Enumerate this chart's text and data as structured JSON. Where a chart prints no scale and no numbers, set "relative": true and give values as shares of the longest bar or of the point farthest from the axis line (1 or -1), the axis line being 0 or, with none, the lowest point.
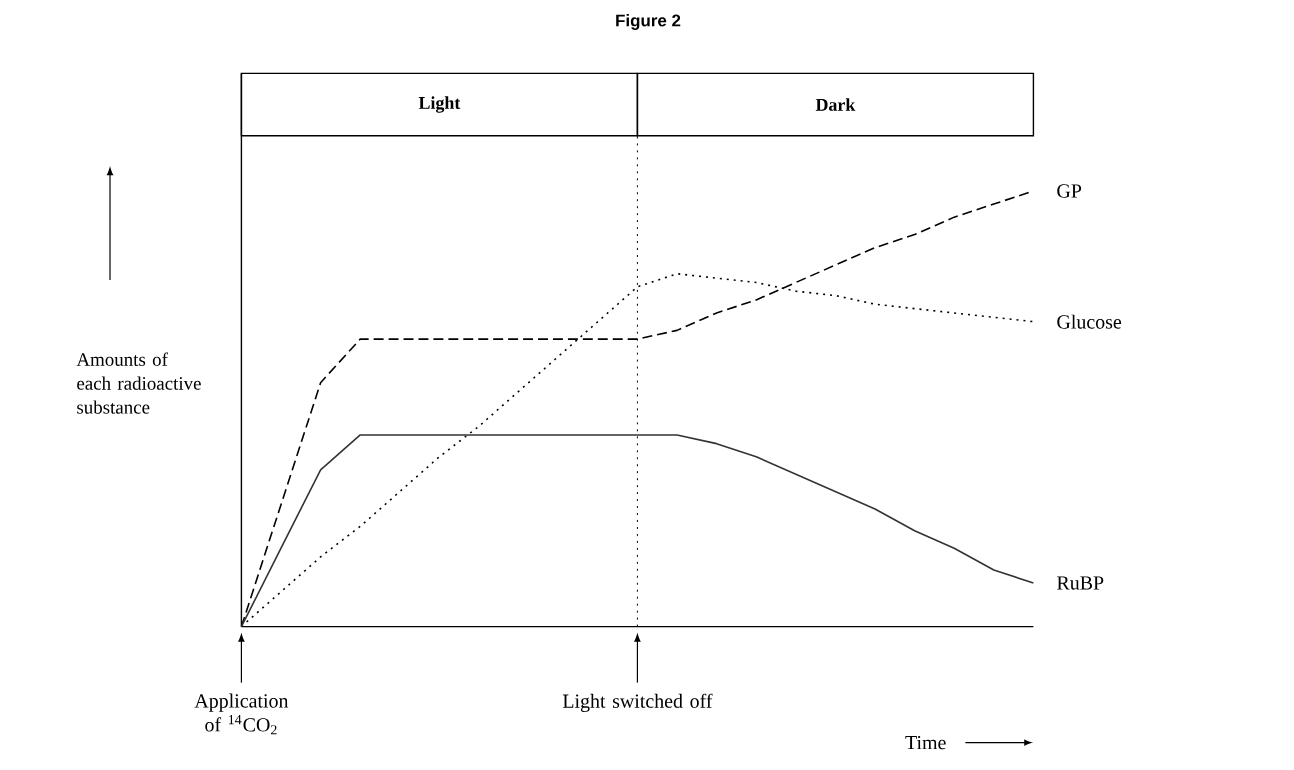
{
  "chart_data": {
    "type": "line",
    "title": "Figure 2",
    "relative": true,
    "ylabel": "Amounts of each radioactive substance",
    "categories": [
      null,
      null,
      null,
      null,
      null,
      null,
      null,
      null,
      null,
      null,
      null,
      null,
      null,
      null,
      null,
      null,
      null,
      null,
      null,
      null,
      null
    ],
    "series": [
      {
        "name": "GP",
        "color": "#000000",
        "line_style": "dashed",
        "values": [
          0,
          0.28,
          0.56,
          0.66,
          0.66,
          0.66,
          0.66,
          0.66,
          0.66,
          0.66,
          0.66,
          0.68,
          0.72,
          0.75,
          0.79,
          0.83,
          0.87,
          0.9,
          0.94,
          0.97,
          1
        ]
      },
      {
        "name": "Glucose",
        "color": "#000000",
        "line_style": "dotted",
        "values": [
          0,
          0.08,
          0.16,
          0.23,
          0.31,
          0.39,
          0.46,
          0.54,
          0.62,
          0.7,
          0.78,
          0.81,
          0.8,
          0.79,
          0.77,
          0.76,
          0.74,
          0.73,
          0.72,
          0.71,
          0.7
        ]
      },
      {
        "name": "RuBP",
        "color": "#333333",
        "line_style": "solid",
        "values": [
          0,
          0.18,
          0.36,
          0.44,
          0.44,
          0.44,
          0.44,
          0.44,
          0.44,
          0.44,
          0.44,
          0.44,
          0.42,
          0.39,
          0.35,
          0.31,
          0.27,
          0.22,
          0.18,
          0.13,
          0.1
        ]
      }
    ],
    "annotations": [
      "Application of $^{14}$CO$_{2}$",
      "Light switched off",
      "Light",
      "Dark",
      "Time"
    ]
  }
}
